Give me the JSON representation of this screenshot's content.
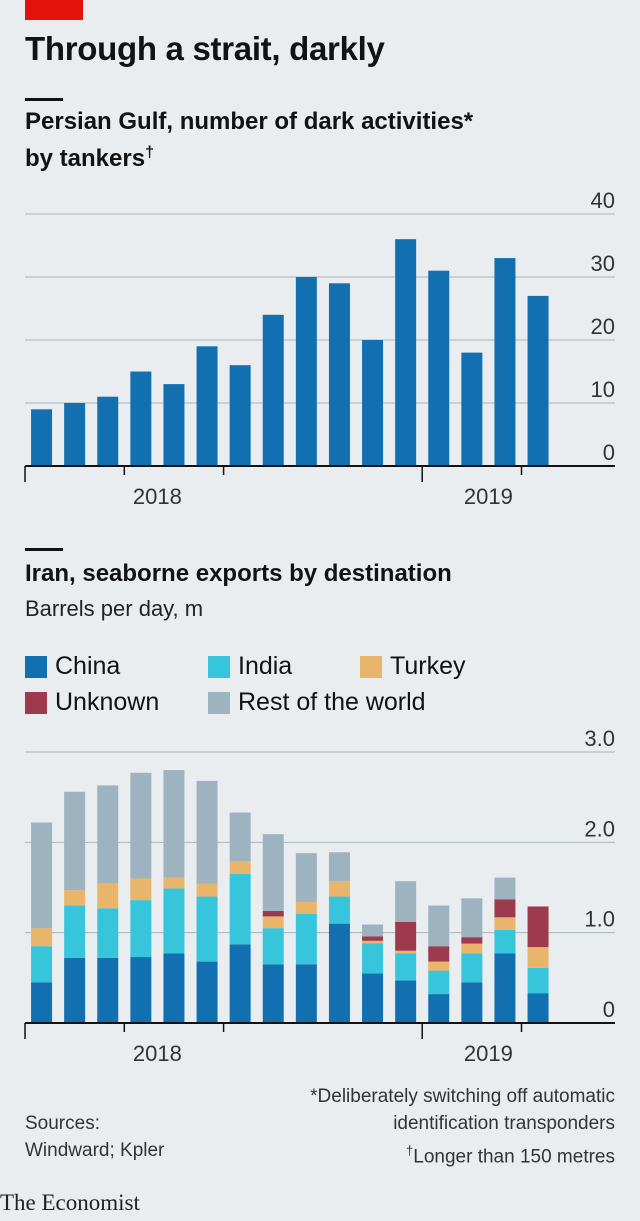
{
  "title": "Through a strait, darkly",
  "chart1": {
    "subtitle_line1": "Persian Gulf, number of dark activities*",
    "subtitle_line2": "by tankers",
    "subtitle_dagger": "†"
  },
  "chart2": {
    "subtitle": "Iran, seaborne exports by destination",
    "unit": "Barrels per day, m"
  },
  "legend": [
    {
      "label": "China",
      "color": "#1270b0"
    },
    {
      "label": "India",
      "color": "#37c5dc"
    },
    {
      "label": "Turkey",
      "color": "#e8b56a"
    },
    {
      "label": "Unknown",
      "color": "#9e3a4e"
    },
    {
      "label": "Rest of the world",
      "color": "#9db3c0"
    }
  ],
  "footnote": {
    "line1": "*Deliberately switching off automatic",
    "line2": "identification transponders",
    "line3_mark": "†",
    "line3": "Longer than 150 metres"
  },
  "sources": {
    "line1": "Sources:",
    "line2": "Windward; Kpler"
  },
  "brand": "The Economist",
  "colors": {
    "bar": "#1270b0",
    "grid": "#a9b4bb",
    "axis": "#121212"
  },
  "chart_data": [
    {
      "type": "bar",
      "title": "Persian Gulf, number of dark activities* by tankers†",
      "x_tick_labels": [
        "2018",
        "2019"
      ],
      "y_ticks": [
        0,
        10,
        20,
        30,
        40
      ],
      "ylim": [
        0,
        40
      ],
      "values": [
        9,
        10,
        11,
        15,
        13,
        19,
        16,
        24,
        30,
        29,
        20,
        36,
        31,
        18,
        33,
        27
      ],
      "grid": true
    },
    {
      "type": "bar",
      "stacked": true,
      "title": "Iran, seaborne exports by destination",
      "ylabel": "Barrels per day, m",
      "x_tick_labels": [
        "2018",
        "2019"
      ],
      "y_ticks": [
        "0",
        "1.0",
        "2.0",
        "3.0"
      ],
      "ylim": [
        0,
        3
      ],
      "legend_position": "top-left",
      "grid": true,
      "series": [
        {
          "name": "China",
          "values": [
            0.45,
            0.72,
            0.72,
            0.73,
            0.77,
            0.68,
            0.87,
            0.65,
            0.65,
            1.1,
            0.55,
            0.47,
            0.32,
            0.45,
            0.77,
            0.33
          ]
        },
        {
          "name": "India",
          "values": [
            0.4,
            0.58,
            0.55,
            0.63,
            0.72,
            0.72,
            0.78,
            0.4,
            0.56,
            0.3,
            0.33,
            0.3,
            0.26,
            0.32,
            0.26,
            0.28
          ]
        },
        {
          "name": "Turkey",
          "values": [
            0.2,
            0.17,
            0.28,
            0.24,
            0.12,
            0.14,
            0.14,
            0.13,
            0.13,
            0.17,
            0.03,
            0.03,
            0.1,
            0.11,
            0.14,
            0.23
          ]
        },
        {
          "name": "Unknown",
          "values": [
            0,
            0,
            0,
            0,
            0,
            0,
            0,
            0.06,
            0,
            0,
            0.05,
            0.32,
            0.17,
            0.07,
            0.2,
            0.45
          ]
        },
        {
          "name": "Rest of the world",
          "values": [
            1.17,
            1.09,
            1.08,
            1.17,
            1.19,
            1.14,
            0.54,
            0.85,
            0.54,
            0.32,
            0.13,
            0.45,
            0.45,
            0.43,
            0.24,
            0
          ]
        }
      ]
    }
  ]
}
